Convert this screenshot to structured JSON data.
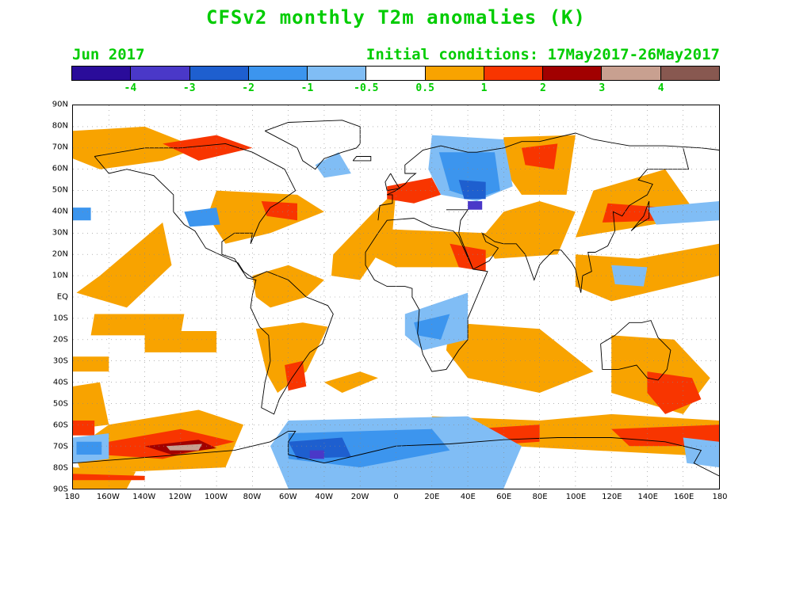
{
  "title": "CFSv2 monthly T2m anomalies (K)",
  "subtitle_left": "Jun 2017",
  "subtitle_right": "Initial conditions: 17May2017-26May2017",
  "text_color": "#00cc00",
  "legend": {
    "colors": [
      "#2a0c9a",
      "#4a38c8",
      "#1e5fcf",
      "#3c95ee",
      "#80bdf5",
      "#ffffff",
      "#f8a300",
      "#f83500",
      "#a10000",
      "#c8a090",
      "#885850"
    ],
    "labels": [
      "-4",
      "-3",
      "-2",
      "-1",
      "-0.5",
      "0.5",
      "1",
      "2",
      "3",
      "4"
    ]
  },
  "axes": {
    "lat_labels": [
      "90N",
      "80N",
      "70N",
      "60N",
      "50N",
      "40N",
      "30N",
      "20N",
      "10N",
      "EQ",
      "10S",
      "20S",
      "30S",
      "40S",
      "50S",
      "60S",
      "70S",
      "80S",
      "90S"
    ],
    "lon_labels": [
      "180",
      "160W",
      "140W",
      "120W",
      "100W",
      "80W",
      "60W",
      "40W",
      "20W",
      "0",
      "20E",
      "40E",
      "60E",
      "80E",
      "100E",
      "120E",
      "140E",
      "160E",
      "180"
    ]
  },
  "map_data": {
    "projection": "equirectangular",
    "lon_range": [
      -180,
      180
    ],
    "lat_range": [
      -90,
      90
    ],
    "grid": "dotted 10 degree",
    "anomaly_regions": [
      {
        "level": "1",
        "lons": [
          [
            -165,
            10
          ],
          [
            -130,
            35
          ],
          [
            -125,
            15
          ],
          [
            -150,
            -5
          ],
          [
            -178,
            2
          ]
        ]
      },
      {
        "level": "1",
        "lons": [
          [
            -170,
            -18
          ],
          [
            -120,
            -18
          ],
          [
            -118,
            -8
          ],
          [
            -168,
            -8
          ]
        ]
      },
      {
        "level": "1",
        "lons": [
          [
            -140,
            -26
          ],
          [
            -100,
            -26
          ],
          [
            -100,
            -16
          ],
          [
            -140,
            -16
          ]
        ]
      },
      {
        "level": "1",
        "lons": [
          [
            -180,
            -35
          ],
          [
            -160,
            -35
          ],
          [
            -160,
            -28
          ],
          [
            -180,
            -28
          ]
        ]
      },
      {
        "level": "1",
        "lons": [
          [
            -160,
            -60
          ],
          [
            -110,
            -53
          ],
          [
            -85,
            -60
          ],
          [
            -95,
            -80
          ],
          [
            -175,
            -83
          ],
          [
            -180,
            -72
          ]
        ]
      },
      {
        "level": "2",
        "lons": [
          [
            -160,
            -68
          ],
          [
            -120,
            -62
          ],
          [
            -90,
            -68
          ],
          [
            -130,
            -76
          ],
          [
            -165,
            -74
          ]
        ]
      },
      {
        "level": "3",
        "lons": [
          [
            -140,
            -70
          ],
          [
            -110,
            -67
          ],
          [
            -100,
            -71
          ],
          [
            -125,
            -74
          ]
        ]
      },
      {
        "level": "4",
        "lons": [
          [
            -128,
            -70
          ],
          [
            -108,
            -69
          ],
          [
            -110,
            -72
          ],
          [
            -126,
            -72
          ]
        ]
      },
      {
        "level": "1",
        "lons": [
          [
            -180,
            -80
          ],
          [
            -145,
            -82
          ],
          [
            -150,
            -90
          ],
          [
            -180,
            -90
          ]
        ]
      },
      {
        "level": "2",
        "lons": [
          [
            -180,
            -83
          ],
          [
            -140,
            -84
          ],
          [
            -140,
            -86
          ],
          [
            -180,
            -86
          ]
        ]
      },
      {
        "level": "1",
        "lons": [
          [
            -78,
            -15
          ],
          [
            -52,
            -12
          ],
          [
            -38,
            -14
          ],
          [
            -50,
            -35
          ],
          [
            -66,
            -45
          ],
          [
            -72,
            -36
          ]
        ]
      },
      {
        "level": "1",
        "lons": [
          [
            -80,
            10
          ],
          [
            -60,
            15
          ],
          [
            -40,
            8
          ],
          [
            -50,
            0
          ],
          [
            -70,
            -5
          ],
          [
            -78,
            0
          ]
        ]
      },
      {
        "level": "2",
        "lons": [
          [
            -62,
            -32
          ],
          [
            -52,
            -30
          ],
          [
            -50,
            -42
          ],
          [
            -60,
            -44
          ]
        ]
      },
      {
        "level": "1",
        "lons": [
          [
            -40,
            -40
          ],
          [
            -20,
            -35
          ],
          [
            -10,
            -38
          ],
          [
            -30,
            -45
          ]
        ]
      },
      {
        "level": "1",
        "lons": [
          [
            -35,
            20
          ],
          [
            -10,
            42
          ],
          [
            0,
            50
          ],
          [
            -2,
            30
          ],
          [
            -20,
            8
          ],
          [
            -36,
            10
          ]
        ]
      },
      {
        "level": "2",
        "lons": [
          [
            -5,
            52
          ],
          [
            20,
            56
          ],
          [
            25,
            48
          ],
          [
            10,
            44
          ],
          [
            -5,
            46
          ]
        ]
      },
      {
        "level": "1",
        "lons": [
          [
            -10,
            32
          ],
          [
            50,
            30
          ],
          [
            55,
            20
          ],
          [
            40,
            14
          ],
          [
            0,
            14
          ],
          [
            -15,
            20
          ]
        ]
      },
      {
        "level": "2",
        "lons": [
          [
            30,
            25
          ],
          [
            50,
            22
          ],
          [
            50,
            12
          ],
          [
            35,
            14
          ]
        ]
      },
      {
        "level": "1",
        "lons": [
          [
            55,
            18
          ],
          [
            90,
            20
          ],
          [
            100,
            40
          ],
          [
            80,
            45
          ],
          [
            60,
            40
          ],
          [
            48,
            28
          ]
        ]
      },
      {
        "level": "1",
        "lons": [
          [
            60,
            75
          ],
          [
            100,
            76
          ],
          [
            95,
            48
          ],
          [
            70,
            48
          ],
          [
            60,
            60
          ]
        ]
      },
      {
        "level": "2",
        "lons": [
          [
            70,
            70
          ],
          [
            90,
            72
          ],
          [
            88,
            60
          ],
          [
            72,
            62
          ]
        ]
      },
      {
        "level": "1",
        "lons": [
          [
            100,
            28
          ],
          [
            150,
            35
          ],
          [
            165,
            42
          ],
          [
            150,
            60
          ],
          [
            110,
            50
          ]
        ]
      },
      {
        "level": "2",
        "lons": [
          [
            115,
            35
          ],
          [
            150,
            36
          ],
          [
            150,
            42
          ],
          [
            118,
            44
          ]
        ]
      },
      {
        "level": "1",
        "lons": [
          [
            30,
            -12
          ],
          [
            80,
            -15
          ],
          [
            110,
            -35
          ],
          [
            80,
            -45
          ],
          [
            40,
            -38
          ],
          [
            28,
            -25
          ]
        ]
      },
      {
        "level": "1",
        "lons": [
          [
            -180,
            78
          ],
          [
            -140,
            80
          ],
          [
            -110,
            70
          ],
          [
            -130,
            64
          ],
          [
            -165,
            60
          ],
          [
            -180,
            65
          ]
        ]
      },
      {
        "level": "2",
        "lons": [
          [
            -130,
            72
          ],
          [
            -100,
            76
          ],
          [
            -80,
            70
          ],
          [
            -110,
            64
          ]
        ]
      },
      {
        "level": "1",
        "lons": [
          [
            -100,
            50
          ],
          [
            -55,
            48
          ],
          [
            -40,
            40
          ],
          [
            -70,
            30
          ],
          [
            -95,
            25
          ],
          [
            -105,
            38
          ]
        ]
      },
      {
        "level": "2",
        "lons": [
          [
            -75,
            45
          ],
          [
            -55,
            44
          ],
          [
            -55,
            36
          ],
          [
            -72,
            38
          ]
        ]
      },
      {
        "level": "1",
        "lons": [
          [
            120,
            -18
          ],
          [
            155,
            -20
          ],
          [
            175,
            -38
          ],
          [
            160,
            -55
          ],
          [
            120,
            -45
          ]
        ]
      },
      {
        "level": "2",
        "lons": [
          [
            140,
            -35
          ],
          [
            165,
            -38
          ],
          [
            170,
            -48
          ],
          [
            150,
            -55
          ],
          [
            140,
            -45
          ]
        ]
      },
      {
        "level": "1",
        "lons": [
          [
            20,
            -56
          ],
          [
            80,
            -58
          ],
          [
            120,
            -55
          ],
          [
            180,
            -58
          ],
          [
            180,
            -75
          ],
          [
            110,
            -72
          ],
          [
            20,
            -68
          ]
        ]
      },
      {
        "level": "2",
        "lons": [
          [
            40,
            -62
          ],
          [
            80,
            -60
          ],
          [
            80,
            -68
          ],
          [
            45,
            -70
          ]
        ]
      },
      {
        "level": "2",
        "lons": [
          [
            120,
            -62
          ],
          [
            180,
            -60
          ],
          [
            180,
            -70
          ],
          [
            130,
            -70
          ]
        ]
      },
      {
        "level": "1",
        "lons": [
          [
            -180,
            -42
          ],
          [
            -165,
            -40
          ],
          [
            -160,
            -60
          ],
          [
            -180,
            -62
          ]
        ]
      },
      {
        "level": "2",
        "lons": [
          [
            -180,
            -58
          ],
          [
            -168,
            -58
          ],
          [
            -168,
            -65
          ],
          [
            -180,
            -65
          ]
        ]
      },
      {
        "level": "1",
        "lons": [
          [
            100,
            20
          ],
          [
            135,
            18
          ],
          [
            180,
            25
          ],
          [
            180,
            10
          ],
          [
            120,
            -2
          ],
          [
            100,
            5
          ]
        ]
      }
    ],
    "cold_regions": [
      {
        "level": "-0.5",
        "lons": [
          [
            20,
            76
          ],
          [
            60,
            74
          ],
          [
            65,
            52
          ],
          [
            45,
            45
          ],
          [
            25,
            48
          ],
          [
            18,
            60
          ]
        ]
      },
      {
        "level": "-1",
        "lons": [
          [
            24,
            68
          ],
          [
            55,
            68
          ],
          [
            58,
            50
          ],
          [
            44,
            46
          ],
          [
            30,
            50
          ]
        ]
      },
      {
        "level": "-2",
        "lons": [
          [
            35,
            55
          ],
          [
            50,
            54
          ],
          [
            50,
            46
          ],
          [
            38,
            46
          ]
        ]
      },
      {
        "level": "-3",
        "lons": [
          [
            40,
            45
          ],
          [
            48,
            45
          ],
          [
            48,
            41
          ],
          [
            40,
            41
          ]
        ]
      },
      {
        "level": "-0.5",
        "lons": [
          [
            5,
            -8
          ],
          [
            40,
            2
          ],
          [
            40,
            -20
          ],
          [
            15,
            -25
          ],
          [
            5,
            -18
          ]
        ]
      },
      {
        "level": "-1",
        "lons": [
          [
            10,
            -12
          ],
          [
            30,
            -8
          ],
          [
            25,
            -20
          ],
          [
            12,
            -18
          ]
        ]
      },
      {
        "level": "-0.5",
        "lons": [
          [
            -60,
            -58
          ],
          [
            40,
            -56
          ],
          [
            70,
            -70
          ],
          [
            60,
            -90
          ],
          [
            -60,
            -90
          ],
          [
            -70,
            -70
          ]
        ]
      },
      {
        "level": "-1",
        "lons": [
          [
            -60,
            -64
          ],
          [
            20,
            -62
          ],
          [
            30,
            -72
          ],
          [
            -20,
            -80
          ],
          [
            -60,
            -76
          ]
        ]
      },
      {
        "level": "-2",
        "lons": [
          [
            -60,
            -68
          ],
          [
            -30,
            -66
          ],
          [
            -25,
            -75
          ],
          [
            -55,
            -76
          ]
        ]
      },
      {
        "level": "-3",
        "lons": [
          [
            -48,
            -72
          ],
          [
            -40,
            -72
          ],
          [
            -40,
            -76
          ],
          [
            -48,
            -76
          ]
        ]
      },
      {
        "level": "-0.5",
        "lons": [
          [
            -180,
            -66
          ],
          [
            -160,
            -64
          ],
          [
            -160,
            -76
          ],
          [
            -180,
            -78
          ]
        ]
      },
      {
        "level": "-1",
        "lons": [
          [
            -178,
            -68
          ],
          [
            -164,
            -68
          ],
          [
            -164,
            -74
          ],
          [
            -178,
            -74
          ]
        ]
      },
      {
        "level": "-0.5",
        "lons": [
          [
            160,
            -66
          ],
          [
            180,
            -68
          ],
          [
            180,
            -80
          ],
          [
            162,
            -78
          ]
        ]
      },
      {
        "level": "-1",
        "lons": [
          [
            -180,
            42
          ],
          [
            -170,
            42
          ],
          [
            -170,
            36
          ],
          [
            -180,
            36
          ]
        ]
      },
      {
        "level": "-0.5",
        "lons": [
          [
            140,
            42
          ],
          [
            180,
            45
          ],
          [
            180,
            36
          ],
          [
            145,
            34
          ]
        ]
      },
      {
        "level": "-0.5",
        "lons": [
          [
            -45,
            62
          ],
          [
            -32,
            68
          ],
          [
            -25,
            58
          ],
          [
            -40,
            56
          ]
        ]
      },
      {
        "level": "-1",
        "lons": [
          [
            -118,
            40
          ],
          [
            -100,
            42
          ],
          [
            -98,
            34
          ],
          [
            -115,
            33
          ]
        ]
      },
      {
        "level": "-0.5",
        "lons": [
          [
            120,
            15
          ],
          [
            140,
            14
          ],
          [
            138,
            5
          ],
          [
            122,
            6
          ]
        ]
      }
    ]
  }
}
